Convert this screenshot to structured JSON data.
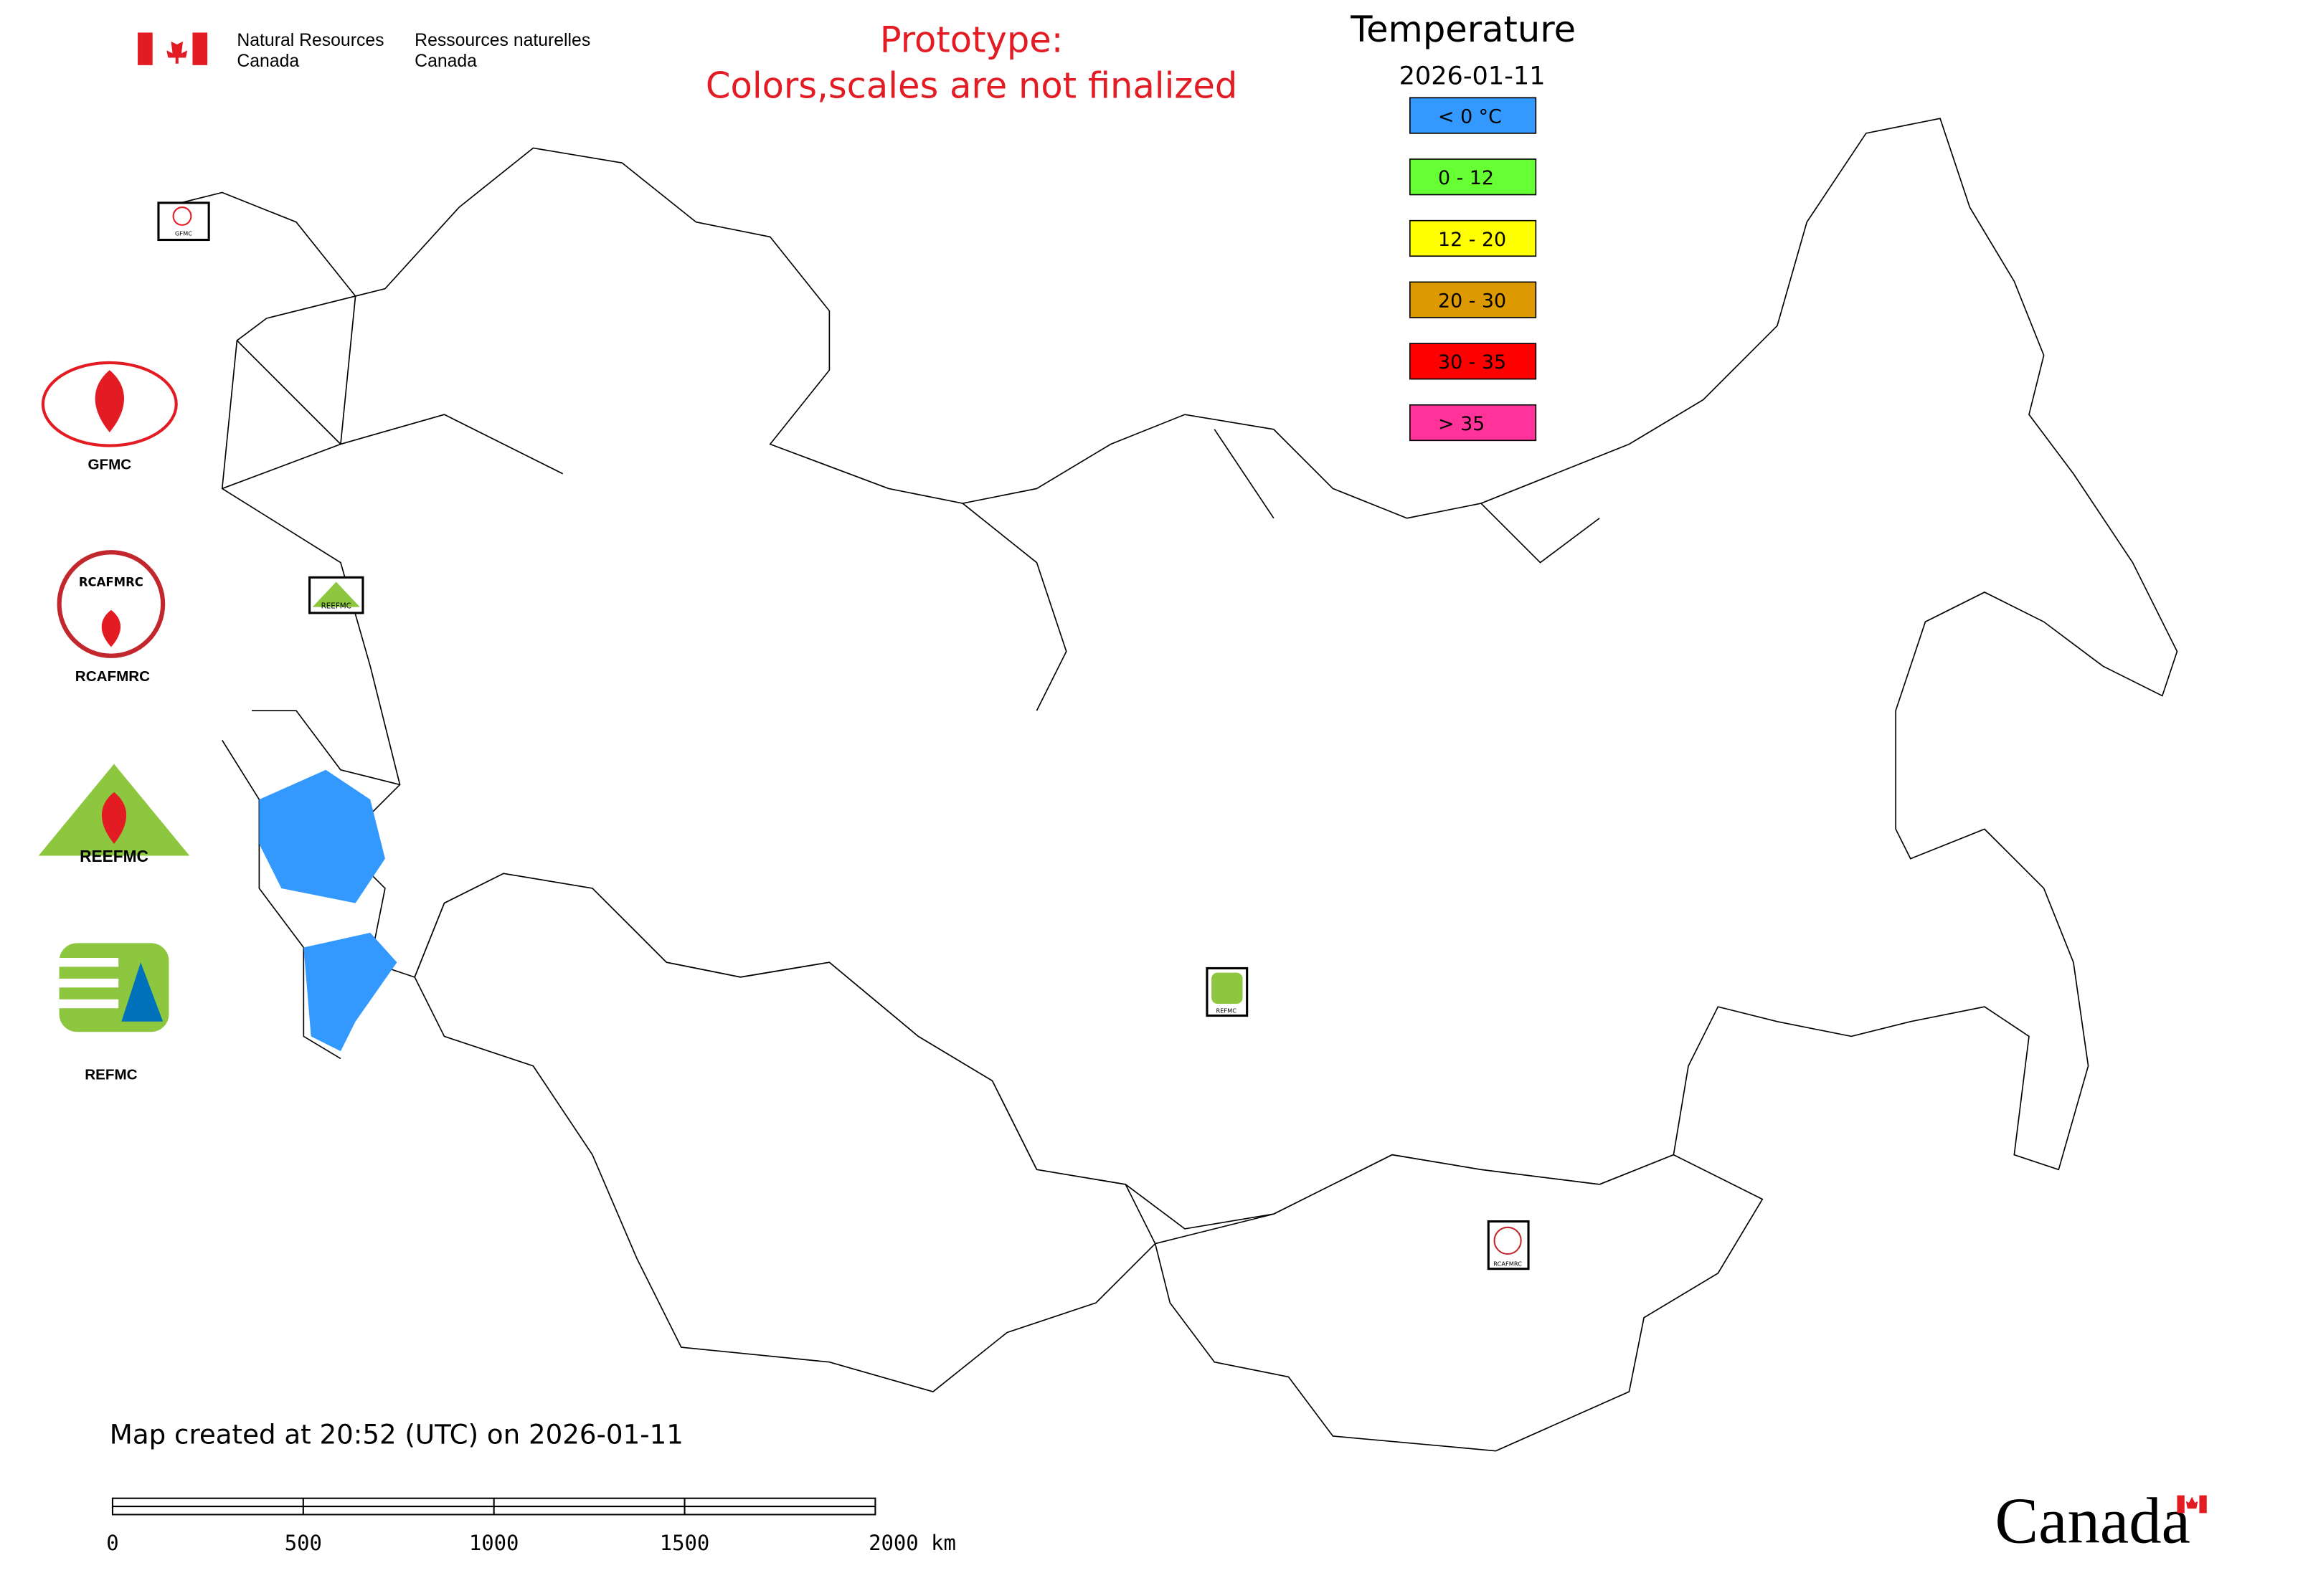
{
  "header": {
    "agency_en": [
      "Natural Resources",
      "Canada"
    ],
    "agency_fr": [
      "Ressources naturelles",
      "Canada"
    ]
  },
  "notice": [
    "Prototype:",
    "Colors,scales are not finalized"
  ],
  "legend": {
    "title": "Temperature",
    "date": "2026-01-11",
    "items": [
      {
        "label": "< 0 °C",
        "color": "#3399ff"
      },
      {
        "label": "0 - 12",
        "color": "#66ff33"
      },
      {
        "label": "12 - 20",
        "color": "#ffff00"
      },
      {
        "label": "20 - 30",
        "color": "#dd9900"
      },
      {
        "label": "30 - 35",
        "color": "#ff0000"
      },
      {
        "label": "> 35",
        "color": "#ff3399"
      }
    ]
  },
  "logos": [
    {
      "label": "GFMC"
    },
    {
      "label": "RCAFMRC"
    },
    {
      "label": "REEFMC"
    },
    {
      "label": "REFMC"
    }
  ],
  "footer": {
    "created": "Map created at 20:52 (UTC) on 2026-01-11",
    "wordmark": "Canada"
  },
  "scale_bar": {
    "labels": [
      "0",
      "500",
      "1000",
      "1500",
      "2000 km"
    ]
  }
}
